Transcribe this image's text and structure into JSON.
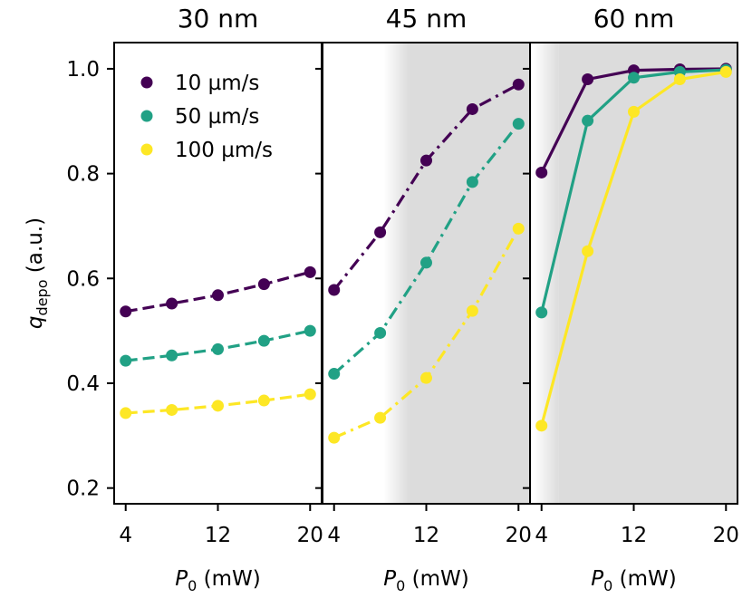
{
  "chart_data": {
    "type": "line",
    "ylabel": "q",
    "ylabel_sub": "depo",
    "ylabel_unit": " (a.u.)",
    "xlabel": "P",
    "xlabel_sub": "0",
    "xlabel_unit": " (mW)",
    "x": [
      4,
      8,
      12,
      16,
      20
    ],
    "xticks": [
      "4",
      "12",
      "20"
    ],
    "xlim": [
      3,
      21
    ],
    "ylim": [
      0.17,
      1.05
    ],
    "yticks": [
      "0.2",
      "0.4",
      "0.6",
      "0.8",
      "1.0"
    ],
    "legend": {
      "placement": "top-left",
      "entries": [
        "10 µm/s",
        "50 µm/s",
        "100 µm/s"
      ]
    },
    "colors": [
      "#440154",
      "#21a185",
      "#fde725"
    ],
    "panels": [
      {
        "title": "30 nm",
        "line_style": "dashed",
        "shaded_from_x": null,
        "series": [
          {
            "name": "10 µm/s",
            "values": [
              0.537,
              0.552,
              0.568,
              0.589,
              0.612
            ]
          },
          {
            "name": "50 µm/s",
            "values": [
              0.443,
              0.453,
              0.465,
              0.481,
              0.5
            ]
          },
          {
            "name": "100 µm/s",
            "values": [
              0.343,
              0.349,
              0.357,
              0.367,
              0.379
            ]
          }
        ]
      },
      {
        "title": "45 nm",
        "line_style": "dashdot",
        "shaded_from_x": 10.5,
        "series": [
          {
            "name": "10 µm/s",
            "values": [
              0.578,
              0.688,
              0.825,
              0.923,
              0.97
            ]
          },
          {
            "name": "50 µm/s",
            "values": [
              0.418,
              0.496,
              0.63,
              0.784,
              0.895
            ]
          },
          {
            "name": "100 µm/s",
            "values": [
              0.296,
              0.334,
              0.41,
              0.538,
              0.695
            ]
          }
        ]
      },
      {
        "title": "60 nm",
        "line_style": "solid",
        "shaded_from_x": 5.5,
        "series": [
          {
            "name": "10 µm/s",
            "values": [
              0.802,
              0.98,
              0.997,
              0.999,
              1.0
            ]
          },
          {
            "name": "50 µm/s",
            "values": [
              0.535,
              0.901,
              0.983,
              0.994,
              0.998
            ]
          },
          {
            "name": "100 µm/s",
            "values": [
              0.319,
              0.652,
              0.918,
              0.98,
              0.994
            ]
          }
        ]
      }
    ]
  }
}
